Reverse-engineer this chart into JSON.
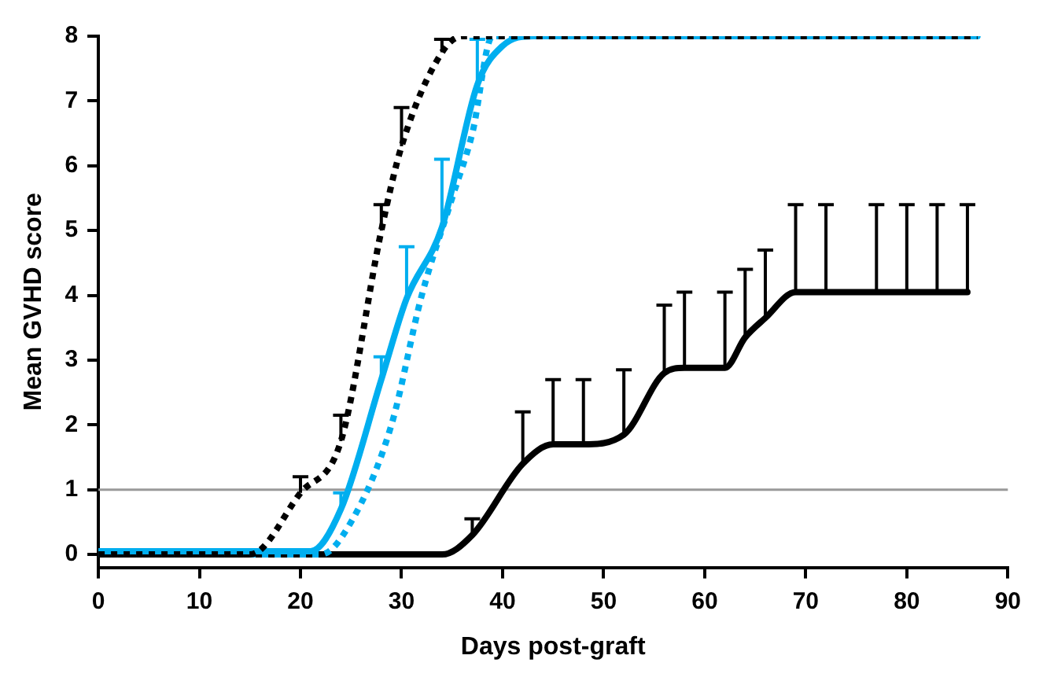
{
  "chart_data": {
    "type": "line",
    "xlabel": "Days post-graft",
    "ylabel": "Mean GVHD score",
    "xlim": [
      0,
      90
    ],
    "ylim": [
      -0.2,
      8
    ],
    "xticks": [
      0,
      10,
      20,
      30,
      40,
      50,
      60,
      70,
      80,
      90
    ],
    "yticks": [
      0,
      1,
      2,
      3,
      4,
      5,
      6,
      7,
      8
    ],
    "grid": false,
    "legend": false,
    "marker": "none",
    "ref_lines": [
      {
        "axis": "y",
        "value": 1,
        "color": "#999999",
        "line_style": "solid"
      }
    ],
    "series": [
      {
        "color": "#000000",
        "line_style": "dotted",
        "x": [
          0,
          15,
          20,
          24,
          28,
          30,
          34,
          36,
          87
        ],
        "values": [
          0,
          0,
          0.95,
          1.75,
          5,
          6.3,
          7.75,
          8,
          8
        ],
        "errors": [
          null,
          null,
          [
            0.95,
            1.2
          ],
          [
            1.75,
            2.15
          ],
          [
            5,
            5.4
          ],
          [
            6.3,
            6.9
          ],
          [
            7.75,
            7.95
          ],
          null,
          null
        ]
      },
      {
        "color": "#00aeef",
        "line_style": "dotted",
        "x": [
          0,
          22,
          25,
          29,
          32,
          35,
          37,
          39,
          87
        ],
        "values": [
          0,
          0,
          0.5,
          2,
          4,
          5.5,
          6.5,
          8,
          8
        ]
      },
      {
        "color": "#00aeef",
        "line_style": "solid",
        "x": [
          0,
          21,
          24,
          28,
          30.5,
          34,
          37.5,
          40,
          43,
          87
        ],
        "values": [
          0.05,
          0.05,
          0.7,
          2.7,
          3.95,
          5.05,
          7.25,
          7.85,
          8,
          8
        ],
        "errors": [
          null,
          null,
          [
            0.7,
            0.95
          ],
          [
            2.7,
            3.05
          ],
          [
            3.95,
            4.75
          ],
          [
            5.05,
            6.1
          ],
          [
            7.25,
            7.95
          ],
          null,
          null,
          null
        ]
      },
      {
        "color": "#000000",
        "line_style": "solid",
        "x": [
          0,
          34,
          37,
          42,
          45,
          48,
          52,
          56,
          58,
          62,
          64,
          66,
          69,
          72,
          77,
          80,
          83,
          86
        ],
        "values": [
          0,
          0,
          0.3,
          1.4,
          1.7,
          1.7,
          1.85,
          2.8,
          2.88,
          2.88,
          3.35,
          3.65,
          4.05,
          4.05,
          4.05,
          4.05,
          4.05,
          4.05
        ],
        "errors": [
          null,
          null,
          [
            0.3,
            0.55
          ],
          [
            1.4,
            2.2
          ],
          [
            1.7,
            2.7
          ],
          [
            1.7,
            2.7
          ],
          [
            1.85,
            2.85
          ],
          [
            2.8,
            3.85
          ],
          [
            2.88,
            4.05
          ],
          [
            2.88,
            4.05
          ],
          [
            3.35,
            4.4
          ],
          [
            3.65,
            4.7
          ],
          [
            4.05,
            5.4
          ],
          [
            4.05,
            5.4
          ],
          [
            4.05,
            5.4
          ],
          [
            4.05,
            5.4
          ],
          [
            4.05,
            5.4
          ],
          [
            4.05,
            5.4
          ]
        ]
      }
    ]
  }
}
